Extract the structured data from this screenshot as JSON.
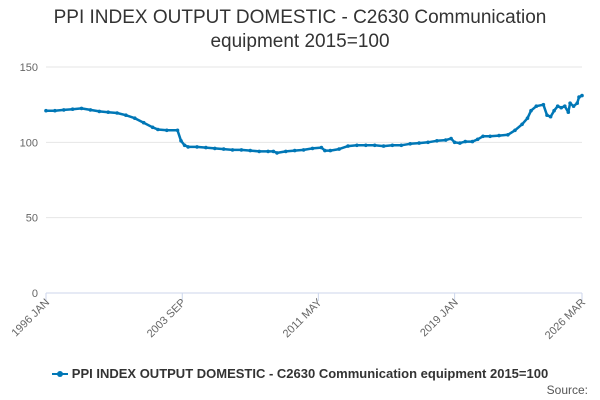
{
  "chart_data": {
    "type": "line",
    "title": "PPI INDEX OUTPUT DOMESTIC - C2630 Communication equipment 2015=100",
    "title_lines": [
      "PPI INDEX OUTPUT DOMESTIC - C2630 Communication",
      "equipment 2015=100"
    ],
    "xlabel": "",
    "ylabel": "",
    "ylim": [
      0,
      150
    ],
    "yticks": [
      0,
      50,
      100,
      150
    ],
    "xlim": [
      1996.0,
      2026.17
    ],
    "xtick_labels": [
      {
        "label": "1996 JAN",
        "x": 1996.0
      },
      {
        "label": "2003 SEP",
        "x": 2003.67
      },
      {
        "label": "2011 MAY",
        "x": 2011.33
      },
      {
        "label": "2019 JAN",
        "x": 2019.0
      },
      {
        "label": "2026 MAR",
        "x": 2026.17
      }
    ],
    "grid": "horizontal",
    "legend_position": "bottom",
    "series": [
      {
        "name": "PPI INDEX OUTPUT DOMESTIC - C2630 Communication equipment 2015=100",
        "color": "#0077b6",
        "points": [
          [
            1996.0,
            121
          ],
          [
            1996.5,
            121
          ],
          [
            1997.0,
            121.5
          ],
          [
            1997.5,
            122
          ],
          [
            1998.0,
            122.5
          ],
          [
            1998.5,
            121.5
          ],
          [
            1999.0,
            120.5
          ],
          [
            1999.5,
            120
          ],
          [
            2000.0,
            119.5
          ],
          [
            2000.5,
            118
          ],
          [
            2001.0,
            116
          ],
          [
            2001.5,
            113
          ],
          [
            2002.0,
            110
          ],
          [
            2002.3,
            108.5
          ],
          [
            2002.8,
            108
          ],
          [
            2003.4,
            108
          ],
          [
            2003.6,
            101
          ],
          [
            2003.8,
            98
          ],
          [
            2004.0,
            97
          ],
          [
            2004.5,
            97
          ],
          [
            2005.0,
            96.5
          ],
          [
            2005.5,
            96
          ],
          [
            2006.0,
            95.5
          ],
          [
            2006.5,
            95
          ],
          [
            2007.0,
            95
          ],
          [
            2007.5,
            94.5
          ],
          [
            2008.0,
            94
          ],
          [
            2008.5,
            94
          ],
          [
            2008.8,
            94
          ],
          [
            2009.0,
            93
          ],
          [
            2009.5,
            94
          ],
          [
            2010.0,
            94.5
          ],
          [
            2010.5,
            95
          ],
          [
            2011.0,
            96
          ],
          [
            2011.5,
            96.5
          ],
          [
            2011.7,
            94.5
          ],
          [
            2012.0,
            94.5
          ],
          [
            2012.5,
            95.5
          ],
          [
            2013.0,
            97.5
          ],
          [
            2013.5,
            98
          ],
          [
            2014.0,
            98
          ],
          [
            2014.5,
            98
          ],
          [
            2015.0,
            97.5
          ],
          [
            2015.5,
            98
          ],
          [
            2016.0,
            98
          ],
          [
            2016.5,
            99
          ],
          [
            2017.0,
            99.5
          ],
          [
            2017.5,
            100
          ],
          [
            2018.0,
            101
          ],
          [
            2018.5,
            101.5
          ],
          [
            2018.8,
            102.5
          ],
          [
            2019.0,
            100
          ],
          [
            2019.3,
            99.5
          ],
          [
            2019.6,
            100.5
          ],
          [
            2020.0,
            100.5
          ],
          [
            2020.3,
            102
          ],
          [
            2020.6,
            104
          ],
          [
            2021.0,
            104
          ],
          [
            2021.5,
            104.5
          ],
          [
            2022.0,
            105
          ],
          [
            2022.4,
            108
          ],
          [
            2022.8,
            112
          ],
          [
            2023.1,
            116
          ],
          [
            2023.3,
            121
          ],
          [
            2023.6,
            124
          ],
          [
            2024.0,
            125
          ],
          [
            2024.2,
            118
          ],
          [
            2024.4,
            117
          ],
          [
            2024.6,
            121
          ],
          [
            2024.8,
            124
          ],
          [
            2025.0,
            123
          ],
          [
            2025.2,
            124
          ],
          [
            2025.4,
            120
          ],
          [
            2025.5,
            126
          ],
          [
            2025.7,
            124
          ],
          [
            2025.9,
            126
          ],
          [
            2026.0,
            130
          ],
          [
            2026.17,
            131
          ]
        ]
      }
    ],
    "source_label": "Source:"
  }
}
